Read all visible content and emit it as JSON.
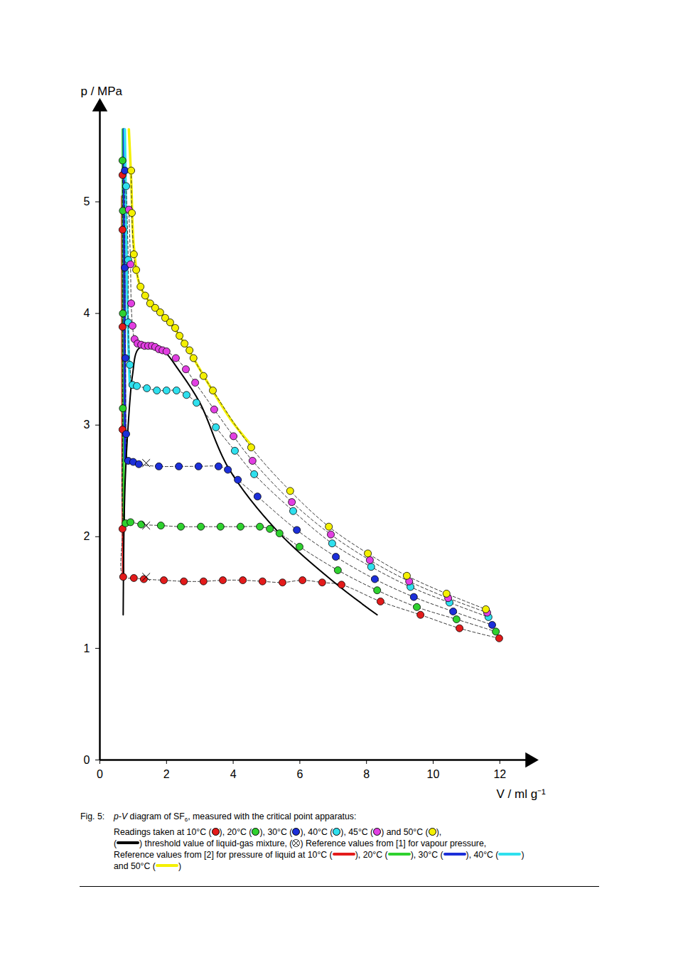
{
  "chart_data": {
    "type": "scatter",
    "x_label": "V / ml g⁻¹",
    "y_label": "p / MPa",
    "xlim": [
      0,
      12.9
    ],
    "xticks": [
      0,
      2,
      4,
      6,
      8,
      10,
      12
    ],
    "ylim": [
      0,
      5.85
    ],
    "yticks": [
      0,
      1,
      2,
      3,
      4,
      5
    ],
    "series": [
      {
        "name": "10°C",
        "color": "#e31b1b",
        "marker": "circle",
        "line_style": "dashed",
        "x": [
          0.68,
          0.68,
          0.68,
          0.68,
          0.68,
          0.7,
          1.02,
          1.32,
          1.92,
          2.52,
          3.11,
          3.69,
          4.29,
          4.88,
          5.48,
          6.08,
          6.67,
          7.25,
          8.42,
          9.62,
          10.79,
          11.98
        ],
        "values": [
          5.24,
          4.75,
          3.88,
          2.96,
          2.07,
          1.64,
          1.63,
          1.62,
          1.61,
          1.6,
          1.6,
          1.61,
          1.61,
          1.6,
          1.59,
          1.61,
          1.59,
          1.57,
          1.42,
          1.3,
          1.18,
          1.09
        ]
      },
      {
        "name": "20°C",
        "color": "#2fd12f",
        "marker": "circle",
        "line_style": "dashed",
        "x": [
          0.68,
          0.69,
          0.69,
          0.69,
          0.77,
          0.92,
          1.24,
          1.83,
          2.43,
          3.03,
          3.62,
          4.22,
          4.8,
          5.1,
          5.39,
          5.99,
          7.14,
          8.32,
          9.51,
          10.7,
          11.88
        ],
        "values": [
          5.37,
          4.92,
          4.0,
          3.15,
          2.12,
          2.13,
          2.11,
          2.1,
          2.09,
          2.09,
          2.09,
          2.09,
          2.09,
          2.07,
          2.03,
          1.91,
          1.7,
          1.52,
          1.37,
          1.26,
          1.15
        ]
      },
      {
        "name": "30°C",
        "color": "#1c2fd9",
        "marker": "circle",
        "line_style": "dashed",
        "x": [
          0.75,
          0.75,
          0.77,
          0.79,
          0.85,
          1.0,
          1.17,
          1.77,
          2.37,
          2.96,
          3.56,
          3.84,
          4.14,
          4.73,
          5.91,
          7.08,
          8.25,
          9.42,
          10.6,
          11.77
        ],
        "values": [
          5.28,
          4.41,
          3.6,
          2.92,
          2.68,
          2.67,
          2.65,
          2.63,
          2.63,
          2.63,
          2.63,
          2.6,
          2.51,
          2.36,
          2.06,
          1.82,
          1.62,
          1.46,
          1.33,
          1.21
        ]
      },
      {
        "name": "40°C",
        "color": "#2fe0ee",
        "marker": "circle",
        "line_style": "dashed",
        "x": [
          0.79,
          0.85,
          0.85,
          0.9,
          0.98,
          1.11,
          1.41,
          1.71,
          2.0,
          2.3,
          2.6,
          2.9,
          3.48,
          4.05,
          4.63,
          5.8,
          6.97,
          8.14,
          9.32,
          10.49,
          11.66
        ],
        "values": [
          5.14,
          4.48,
          3.92,
          3.54,
          3.36,
          3.35,
          3.33,
          3.31,
          3.31,
          3.31,
          3.27,
          3.2,
          2.98,
          2.77,
          2.56,
          2.23,
          1.94,
          1.73,
          1.55,
          1.41,
          1.28
        ]
      },
      {
        "name": "45°C",
        "color": "#e23fe2",
        "marker": "circle",
        "line_style": "dashed",
        "x": [
          0.87,
          0.92,
          0.94,
          0.98,
          1.04,
          1.13,
          1.24,
          1.34,
          1.45,
          1.56,
          1.66,
          1.77,
          1.88,
          2.0,
          2.28,
          2.58,
          2.86,
          3.43,
          4.01,
          4.58,
          5.76,
          6.93,
          8.1,
          9.28,
          10.45,
          11.62
        ],
        "values": [
          4.93,
          4.44,
          4.09,
          3.89,
          3.77,
          3.73,
          3.72,
          3.71,
          3.71,
          3.71,
          3.7,
          3.68,
          3.67,
          3.66,
          3.6,
          3.5,
          3.38,
          3.14,
          2.9,
          2.68,
          2.31,
          2.02,
          1.79,
          1.6,
          1.45,
          1.32
        ]
      },
      {
        "name": "50°C",
        "color": "#f4f000",
        "marker": "circle",
        "line_style": "dashed",
        "x": [
          0.94,
          0.96,
          1.02,
          1.09,
          1.22,
          1.36,
          1.51,
          1.66,
          1.81,
          1.96,
          2.11,
          2.26,
          2.39,
          2.54,
          2.69,
          2.81,
          3.11,
          3.39,
          4.54,
          5.71,
          6.87,
          8.04,
          9.21,
          10.4,
          11.58
        ],
        "values": [
          5.28,
          4.9,
          4.53,
          4.39,
          4.24,
          4.16,
          4.09,
          4.05,
          4.01,
          3.96,
          3.92,
          3.87,
          3.8,
          3.73,
          3.67,
          3.6,
          3.44,
          3.31,
          2.8,
          2.41,
          2.09,
          1.85,
          1.65,
          1.49,
          1.35
        ]
      }
    ],
    "threshold": {
      "color": "#000000",
      "line_style": "solid",
      "x": [
        0.7,
        0.72,
        0.76,
        0.85,
        0.98,
        1.15,
        1.5,
        1.9,
        2.35,
        3.0,
        3.85,
        5.39,
        7.04,
        8.32
      ],
      "values": [
        1.3,
        2.0,
        2.5,
        3.0,
        3.45,
        3.68,
        3.72,
        3.67,
        3.5,
        3.2,
        2.62,
        2.03,
        1.59,
        1.3
      ]
    },
    "vapour_pressure_reference": {
      "color": "#000000",
      "marker": "x",
      "x": [
        1.39,
        1.39,
        1.39
      ],
      "values": [
        2.66,
        2.1,
        1.64
      ]
    },
    "liquid_pressure_reference": [
      {
        "name": "10°C",
        "color": "#e31b1b",
        "line_style": "solid",
        "x": [
          0.7,
          0.68,
          0.67
        ],
        "values": [
          1.65,
          3.0,
          5.05
        ]
      },
      {
        "name": "20°C",
        "color": "#2fd12f",
        "line_style": "solid",
        "x": [
          0.72,
          0.7,
          0.69
        ],
        "values": [
          2.12,
          3.5,
          5.65
        ]
      },
      {
        "name": "30°C",
        "color": "#1c2fd9",
        "line_style": "solid",
        "x": [
          0.76,
          0.74,
          0.72
        ],
        "values": [
          2.68,
          4.0,
          5.65
        ]
      },
      {
        "name": "40°C",
        "color": "#2fe0ee",
        "line_style": "solid",
        "x": [
          0.9,
          0.83,
          0.78,
          0.75
        ],
        "values": [
          3.35,
          4.0,
          5.0,
          5.65
        ]
      },
      {
        "name": "50°C",
        "color": "#f4f000",
        "line_style": "solid",
        "x": [
          0.87,
          0.94,
          1.02,
          1.2,
          1.5,
          2.0,
          2.5,
          3.0,
          3.5,
          4.0,
          4.6
        ],
        "values": [
          5.65,
          5.2,
          4.6,
          4.25,
          4.1,
          3.95,
          3.75,
          3.5,
          3.25,
          3.02,
          2.8
        ]
      }
    ],
    "caption": {
      "label": "Fig. 5:",
      "lines": [
        [
          {
            "italic": "p-V"
          },
          " diagram of SF",
          {
            "sub": "6"
          },
          ", measured with the critical point apparatus:"
        ],
        [
          "Readings taken at 10°C (",
          {
            "dot": "10°C"
          },
          "), 20°C (",
          {
            "dot": "20°C"
          },
          "), 30°C (",
          {
            "dot": "30°C"
          },
          "), 40°C (",
          {
            "dot": "40°C"
          },
          "), 45°C (",
          {
            "dot": "45°C"
          },
          ") and 50°C (",
          {
            "dot": "50°C"
          },
          "),"
        ],
        [
          "(",
          {
            "swatch": "threshold"
          },
          ") threshold value of liquid-gas mixture, (",
          {
            "swatch": "vapour"
          },
          ") Reference values from [1] for vapour pressure,"
        ],
        [
          "Reference values from [2] for pressure of liquid at 10°C (",
          {
            "ref": "10°C"
          },
          "), 20°C (",
          {
            "ref": "20°C"
          },
          "), 30°C (",
          {
            "ref": "30°C"
          },
          "), 40°C (",
          {
            "ref": "40°C"
          },
          ")"
        ],
        [
          "and 50°C (",
          {
            "ref": "50°C"
          },
          ")"
        ]
      ]
    }
  }
}
